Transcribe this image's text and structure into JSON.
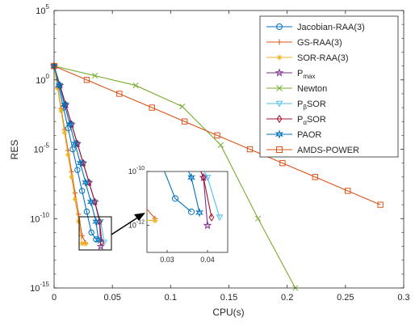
{
  "chart_data": {
    "type": "line",
    "xlabel": "CPU(s)",
    "ylabel": "RES",
    "yscale": "log",
    "xlim": [
      0,
      0.3
    ],
    "ylim": [
      1e-15,
      100000
    ],
    "x_ticks": [
      "0",
      "0.05",
      "0.1",
      "0.15",
      "0.2",
      "0.25",
      "0.3"
    ],
    "y_ticks": [
      {
        "base": "10",
        "exp": "-15"
      },
      {
        "base": "10",
        "exp": "-10"
      },
      {
        "base": "10",
        "exp": "-5"
      },
      {
        "base": "10",
        "exp": "0"
      },
      {
        "base": "10",
        "exp": "5"
      }
    ],
    "legend_position": "top-right",
    "legend": [
      {
        "label": "Jacobian-RAA(3)",
        "sub": ""
      },
      {
        "label": "GS-RAA(3)",
        "sub": ""
      },
      {
        "label": "SOR-RAA(3)",
        "sub": ""
      },
      {
        "label": "P",
        "sub": "max"
      },
      {
        "label": "Newton",
        "sub": ""
      },
      {
        "label": "P",
        "sub": "β",
        "suffix": "SOR"
      },
      {
        "label": "P",
        "sub": "α",
        "suffix": "SOR"
      },
      {
        "label": "PAOR",
        "sub": ""
      },
      {
        "label": "AMDS-POWER",
        "sub": ""
      }
    ],
    "series": [
      {
        "name": "Jacobian-RAA(3)",
        "color": "#0072BD",
        "marker": "circle",
        "x": [
          0,
          0.004,
          0.008,
          0.012,
          0.016,
          0.02,
          0.024,
          0.028,
          0.032,
          0.036
        ],
        "y": [
          10,
          0.32,
          0.01,
          0.00032,
          1e-05,
          3.2e-07,
          1e-08,
          3.2e-10,
          1e-11,
          3.2e-12
        ]
      },
      {
        "name": "GS-RAA(3)",
        "color": "#D95319",
        "marker": "plus",
        "x": [
          0,
          0.003,
          0.006,
          0.009,
          0.012,
          0.015,
          0.018,
          0.021,
          0.024,
          0.027
        ],
        "y": [
          10,
          0.3,
          0.009,
          0.00027,
          8e-06,
          2.4e-07,
          7e-09,
          2.1e-10,
          6e-12,
          1.8e-12
        ]
      },
      {
        "name": "SOR-RAA(3)",
        "color": "#EDB120",
        "marker": "asterisk",
        "x": [
          0,
          0.003,
          0.006,
          0.009,
          0.012,
          0.015,
          0.018,
          0.021,
          0.024,
          0.027
        ],
        "y": [
          10,
          0.25,
          0.006,
          0.00016,
          4e-06,
          1e-07,
          2.5e-09,
          6.3e-11,
          1.6e-12,
          1.5e-12
        ]
      },
      {
        "name": "Pmax",
        "color": "#7E2F8E",
        "marker": "pentagram",
        "x": [
          0,
          0.005,
          0.01,
          0.015,
          0.02,
          0.025,
          0.03,
          0.035,
          0.039,
          0.04
        ],
        "y": [
          10,
          0.4,
          0.016,
          0.00063,
          2.5e-05,
          1e-06,
          4e-08,
          1.6e-09,
          6e-11,
          1e-12
        ]
      },
      {
        "name": "Newton",
        "color": "#77AC30",
        "marker": "x",
        "x": [
          0,
          0.035,
          0.07,
          0.11,
          0.143,
          0.175,
          0.207
        ],
        "y": [
          10,
          2,
          0.4,
          0.012,
          2e-05,
          1e-10,
          1e-15
        ]
      },
      {
        "name": "PβSOR",
        "color": "#4DBEEE",
        "marker": "triangle-down",
        "x": [
          0,
          0.005,
          0.01,
          0.015,
          0.02,
          0.025,
          0.03,
          0.035,
          0.04,
          0.043
        ],
        "y": [
          10,
          0.4,
          0.016,
          0.00063,
          2.5e-05,
          1e-06,
          4e-08,
          1.6e-09,
          6e-11,
          2e-12
        ]
      },
      {
        "name": "PαSOR",
        "color": "#A2142F",
        "marker": "diamond",
        "x": [
          0,
          0.005,
          0.01,
          0.015,
          0.02,
          0.025,
          0.03,
          0.035,
          0.039,
          0.041
        ],
        "y": [
          10,
          0.4,
          0.016,
          0.00063,
          2.5e-05,
          1e-06,
          4e-08,
          1.6e-09,
          6e-11,
          2e-12
        ]
      },
      {
        "name": "PAOR",
        "color": "#0072BD",
        "marker": "hexagram",
        "x": [
          0,
          0.0045,
          0.009,
          0.0135,
          0.018,
          0.0225,
          0.027,
          0.0315,
          0.036,
          0.038
        ],
        "y": [
          10,
          0.4,
          0.016,
          0.00063,
          2.5e-05,
          1e-06,
          4e-08,
          1.6e-09,
          6e-11,
          3e-12
        ]
      },
      {
        "name": "AMDS-POWER",
        "color": "#D95319",
        "marker": "square",
        "x": [
          0,
          0.028,
          0.056,
          0.084,
          0.112,
          0.14,
          0.168,
          0.196,
          0.224,
          0.252,
          0.28
        ],
        "y": [
          10,
          1,
          0.1,
          0.01,
          0.001,
          0.0001,
          1e-05,
          1e-06,
          1e-07,
          1e-08,
          1e-09
        ]
      }
    ],
    "inset": {
      "xlim": [
        0.025,
        0.045
      ],
      "ylim": [
        1e-13,
        1e-10
      ],
      "x_ticks": [
        "0.03",
        "0.04"
      ],
      "y_ticks": [
        {
          "base": "10",
          "exp": "-10"
        },
        {
          "base": "10",
          "exp": "-12"
        }
      ]
    }
  }
}
